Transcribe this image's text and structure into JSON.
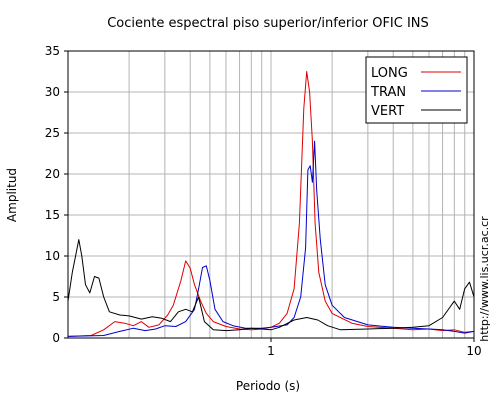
{
  "chart_data": {
    "type": "line",
    "title": "Cociente espectral piso superior/inferior  OFIC INS",
    "xlabel": "Periodo (s)",
    "ylabel": "Amplitud",
    "x_scale": "log",
    "xlim": [
      0.1,
      10
    ],
    "ylim": [
      0,
      35
    ],
    "xticks": [
      1,
      10
    ],
    "xtick_labels": [
      "1",
      "10"
    ],
    "yticks": [
      0,
      5,
      10,
      15,
      20,
      25,
      30,
      35
    ],
    "grid": true,
    "legend_position": "top-right",
    "side_text": "http://www.lis.ucr.ac.cr",
    "series": [
      {
        "name": "LONG",
        "color": "#e00000",
        "points": [
          [
            0.1,
            0.2
          ],
          [
            0.13,
            0.3
          ],
          [
            0.15,
            1.0
          ],
          [
            0.17,
            2.0
          ],
          [
            0.19,
            1.8
          ],
          [
            0.21,
            1.5
          ],
          [
            0.23,
            2.0
          ],
          [
            0.25,
            1.3
          ],
          [
            0.28,
            1.6
          ],
          [
            0.31,
            2.8
          ],
          [
            0.33,
            4.0
          ],
          [
            0.36,
            7.0
          ],
          [
            0.38,
            9.4
          ],
          [
            0.4,
            8.5
          ],
          [
            0.42,
            6.5
          ],
          [
            0.45,
            4.5
          ],
          [
            0.48,
            3.0
          ],
          [
            0.52,
            2.0
          ],
          [
            0.6,
            1.4
          ],
          [
            0.7,
            1.1
          ],
          [
            0.8,
            1.0
          ],
          [
            0.9,
            1.1
          ],
          [
            1.0,
            1.3
          ],
          [
            1.1,
            1.8
          ],
          [
            1.2,
            3.0
          ],
          [
            1.3,
            6.0
          ],
          [
            1.38,
            14.0
          ],
          [
            1.45,
            28.0
          ],
          [
            1.5,
            32.5
          ],
          [
            1.55,
            30.0
          ],
          [
            1.6,
            24.0
          ],
          [
            1.65,
            14.0
          ],
          [
            1.72,
            8.0
          ],
          [
            1.85,
            4.5
          ],
          [
            2.0,
            3.0
          ],
          [
            2.5,
            1.8
          ],
          [
            3.0,
            1.4
          ],
          [
            4.0,
            1.2
          ],
          [
            5.0,
            1.0
          ],
          [
            6.0,
            1.1
          ],
          [
            7.0,
            0.9
          ],
          [
            8.0,
            1.0
          ],
          [
            9.0,
            0.7
          ],
          [
            10.0,
            0.8
          ]
        ]
      },
      {
        "name": "TRAN",
        "color": "#0000cc",
        "points": [
          [
            0.1,
            0.2
          ],
          [
            0.15,
            0.3
          ],
          [
            0.18,
            0.8
          ],
          [
            0.21,
            1.2
          ],
          [
            0.24,
            0.9
          ],
          [
            0.27,
            1.1
          ],
          [
            0.3,
            1.5
          ],
          [
            0.34,
            1.4
          ],
          [
            0.38,
            2.0
          ],
          [
            0.42,
            3.5
          ],
          [
            0.44,
            6.0
          ],
          [
            0.46,
            8.6
          ],
          [
            0.48,
            8.8
          ],
          [
            0.5,
            7.0
          ],
          [
            0.53,
            3.5
          ],
          [
            0.58,
            2.0
          ],
          [
            0.65,
            1.5
          ],
          [
            0.75,
            1.2
          ],
          [
            0.9,
            1.2
          ],
          [
            1.0,
            1.3
          ],
          [
            1.2,
            1.6
          ],
          [
            1.3,
            2.5
          ],
          [
            1.4,
            5.0
          ],
          [
            1.48,
            11.0
          ],
          [
            1.52,
            20.5
          ],
          [
            1.56,
            21.0
          ],
          [
            1.6,
            19.0
          ],
          [
            1.64,
            24.0
          ],
          [
            1.68,
            18.0
          ],
          [
            1.75,
            12.0
          ],
          [
            1.85,
            6.5
          ],
          [
            2.0,
            4.0
          ],
          [
            2.3,
            2.5
          ],
          [
            3.0,
            1.6
          ],
          [
            4.0,
            1.3
          ],
          [
            5.0,
            1.2
          ],
          [
            6.0,
            1.1
          ],
          [
            7.0,
            1.0
          ],
          [
            8.0,
            0.8
          ],
          [
            9.0,
            0.6
          ],
          [
            10.0,
            0.8
          ]
        ]
      },
      {
        "name": "VERT",
        "color": "#000000",
        "points": [
          [
            0.1,
            4.5
          ],
          [
            0.105,
            8.0
          ],
          [
            0.11,
            10.5
          ],
          [
            0.113,
            12.0
          ],
          [
            0.117,
            10.0
          ],
          [
            0.122,
            6.5
          ],
          [
            0.128,
            5.5
          ],
          [
            0.135,
            7.5
          ],
          [
            0.142,
            7.3
          ],
          [
            0.15,
            5.0
          ],
          [
            0.16,
            3.2
          ],
          [
            0.18,
            2.8
          ],
          [
            0.2,
            2.7
          ],
          [
            0.23,
            2.3
          ],
          [
            0.26,
            2.6
          ],
          [
            0.29,
            2.4
          ],
          [
            0.32,
            2.0
          ],
          [
            0.35,
            3.2
          ],
          [
            0.38,
            3.5
          ],
          [
            0.41,
            3.2
          ],
          [
            0.44,
            5.0
          ],
          [
            0.47,
            2.0
          ],
          [
            0.52,
            1.0
          ],
          [
            0.6,
            0.9
          ],
          [
            0.7,
            1.0
          ],
          [
            0.8,
            1.2
          ],
          [
            1.0,
            1.0
          ],
          [
            1.1,
            1.3
          ],
          [
            1.3,
            2.2
          ],
          [
            1.5,
            2.5
          ],
          [
            1.7,
            2.2
          ],
          [
            1.9,
            1.5
          ],
          [
            2.2,
            1.0
          ],
          [
            3.0,
            1.1
          ],
          [
            4.0,
            1.2
          ],
          [
            5.0,
            1.3
          ],
          [
            6.0,
            1.5
          ],
          [
            7.0,
            2.5
          ],
          [
            8.0,
            4.5
          ],
          [
            8.5,
            3.5
          ],
          [
            9.0,
            6.0
          ],
          [
            9.5,
            6.8
          ],
          [
            10.0,
            5.0
          ]
        ]
      }
    ]
  }
}
